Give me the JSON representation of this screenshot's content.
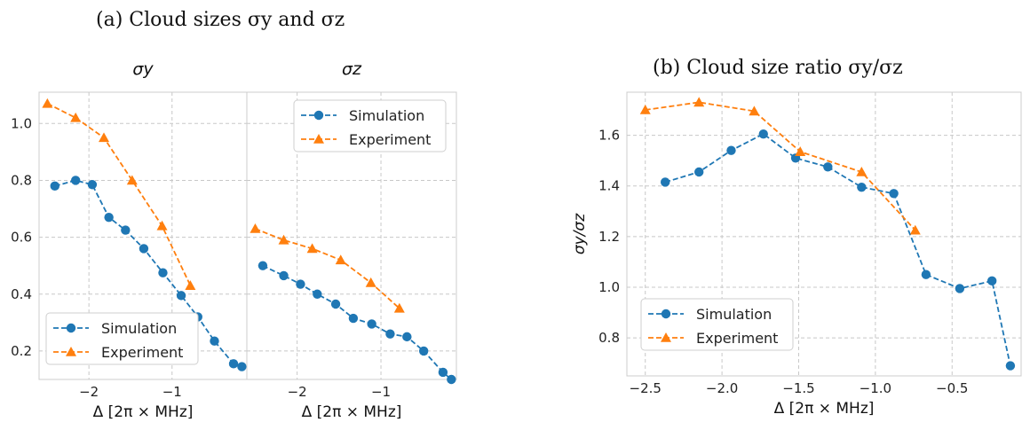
{
  "figure": {
    "title_a": "(a) Cloud sizes σy and σz",
    "title_b": "(b) Cloud size ratio σy/σz"
  },
  "colors": {
    "simulation": "#1f77b4",
    "experiment": "#ff7f0e",
    "grid": "#c8c8c8",
    "frame": "#cccccc"
  },
  "chart_data": [
    {
      "type": "line",
      "title": "σy",
      "xlabel": "Δ [2π × MHz]",
      "ylabel": "",
      "xlim": [
        -2.6,
        -0.1
      ],
      "ylim": [
        0.1,
        1.11
      ],
      "xticks": [
        -2,
        -1
      ],
      "xtick_labels": [
        "−2",
        "−1"
      ],
      "yticks": [
        0.2,
        0.4,
        0.6,
        0.8,
        1.0
      ],
      "ytick_labels": [
        "0.2",
        "0.4",
        "0.6",
        "0.8",
        "1.0"
      ],
      "grid": true,
      "legend": "lower-left",
      "series": [
        {
          "name": "Simulation",
          "marker": "circle",
          "color": "#1f77b4",
          "x": [
            -2.41,
            -2.16,
            -1.96,
            -1.76,
            -1.56,
            -1.34,
            -1.11,
            -0.89,
            -0.69,
            -0.49,
            -0.26,
            -0.16
          ],
          "y": [
            0.78,
            0.8,
            0.785,
            0.67,
            0.625,
            0.56,
            0.475,
            0.395,
            0.32,
            0.235,
            0.155,
            0.145
          ]
        },
        {
          "name": "Experiment",
          "marker": "triangle",
          "color": "#ff7f0e",
          "x": [
            -2.5,
            -2.16,
            -1.82,
            -1.48,
            -1.12,
            -0.78
          ],
          "y": [
            1.07,
            1.02,
            0.95,
            0.8,
            0.64,
            0.43
          ]
        }
      ]
    },
    {
      "type": "line",
      "title": "σz",
      "xlabel": "Δ [2π × MHz]",
      "ylabel": "",
      "xlim": [
        -2.6,
        -0.1
      ],
      "ylim": [
        0.1,
        1.11
      ],
      "xticks": [
        -2,
        -1
      ],
      "xtick_labels": [
        "−2",
        "−1"
      ],
      "yticks": [
        0.2,
        0.4,
        0.6,
        0.8,
        1.0
      ],
      "ytick_labels": [],
      "grid": true,
      "legend": "upper-right",
      "series": [
        {
          "name": "Simulation",
          "marker": "circle",
          "color": "#1f77b4",
          "x": [
            -2.41,
            -2.16,
            -1.96,
            -1.76,
            -1.54,
            -1.33,
            -1.11,
            -0.89,
            -0.69,
            -0.49,
            -0.26,
            -0.16
          ],
          "y": [
            0.5,
            0.465,
            0.435,
            0.4,
            0.365,
            0.315,
            0.295,
            0.26,
            0.25,
            0.2,
            0.125,
            0.1
          ]
        },
        {
          "name": "Experiment",
          "marker": "triangle",
          "color": "#ff7f0e",
          "x": [
            -2.5,
            -2.16,
            -1.82,
            -1.48,
            -1.12,
            -0.78
          ],
          "y": [
            0.63,
            0.59,
            0.56,
            0.52,
            0.44,
            0.35
          ]
        }
      ]
    },
    {
      "type": "line",
      "title": "",
      "xlabel": "Δ [2π × MHz]",
      "ylabel": "σy/σz",
      "xlim": [
        -2.62,
        -0.05
      ],
      "ylim": [
        0.65,
        1.77
      ],
      "xticks": [
        -2.5,
        -2.0,
        -1.5,
        -1.0,
        -0.5
      ],
      "xtick_labels": [
        "−2.5",
        "−2.0",
        "−1.5",
        "−1.0",
        "−0.5"
      ],
      "yticks": [
        0.8,
        1.0,
        1.2,
        1.4,
        1.6
      ],
      "ytick_labels": [
        "0.8",
        "1.0",
        "1.2",
        "1.4",
        "1.6"
      ],
      "grid": true,
      "legend": "lower-left",
      "series": [
        {
          "name": "Simulation",
          "marker": "circle",
          "color": "#1f77b4",
          "x": [
            -2.37,
            -2.15,
            -1.94,
            -1.73,
            -1.52,
            -1.31,
            -1.09,
            -0.88,
            -0.67,
            -0.45,
            -0.24,
            -0.12
          ],
          "y": [
            1.415,
            1.455,
            1.54,
            1.605,
            1.51,
            1.475,
            1.395,
            1.37,
            1.05,
            0.995,
            1.025,
            0.69
          ]
        },
        {
          "name": "Experiment",
          "marker": "triangle",
          "color": "#ff7f0e",
          "x": [
            -2.5,
            -2.15,
            -1.79,
            -1.49,
            -1.09,
            -0.74
          ],
          "y": [
            1.7,
            1.73,
            1.695,
            1.535,
            1.455,
            1.225
          ]
        }
      ]
    }
  ]
}
